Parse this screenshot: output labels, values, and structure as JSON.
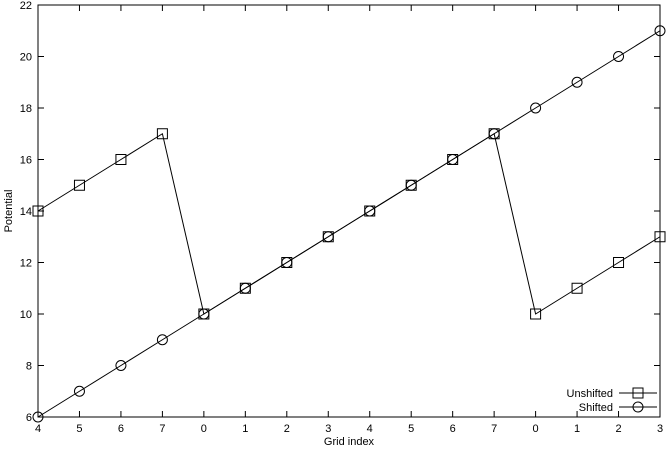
{
  "figure": {
    "background": "#ffffff"
  },
  "chart_data": {
    "type": "line",
    "title": "",
    "xlabel": "Grid index",
    "ylabel": "Potential",
    "categories": [
      "4",
      "5",
      "6",
      "7",
      "0",
      "1",
      "2",
      "3",
      "4",
      "5",
      "6",
      "7",
      "0",
      "1",
      "2",
      "3"
    ],
    "ylim": [
      6,
      22
    ],
    "ytick_values": [
      6,
      8,
      10,
      12,
      14,
      16,
      18,
      20,
      22
    ],
    "grid": false,
    "legend_position": "bottom-right",
    "line_color": "#000000",
    "text_color": "#000000",
    "background_color": "#ffffff",
    "series": [
      {
        "name": "Unshifted",
        "marker": "square",
        "values": [
          14,
          15,
          16,
          17,
          10,
          11,
          12,
          13,
          14,
          15,
          16,
          17,
          10,
          11,
          12,
          13
        ]
      },
      {
        "name": "Shifted",
        "marker": "circle",
        "values": [
          6,
          7,
          8,
          9,
          10,
          11,
          12,
          13,
          14,
          15,
          16,
          17,
          18,
          19,
          20,
          21
        ]
      }
    ]
  }
}
